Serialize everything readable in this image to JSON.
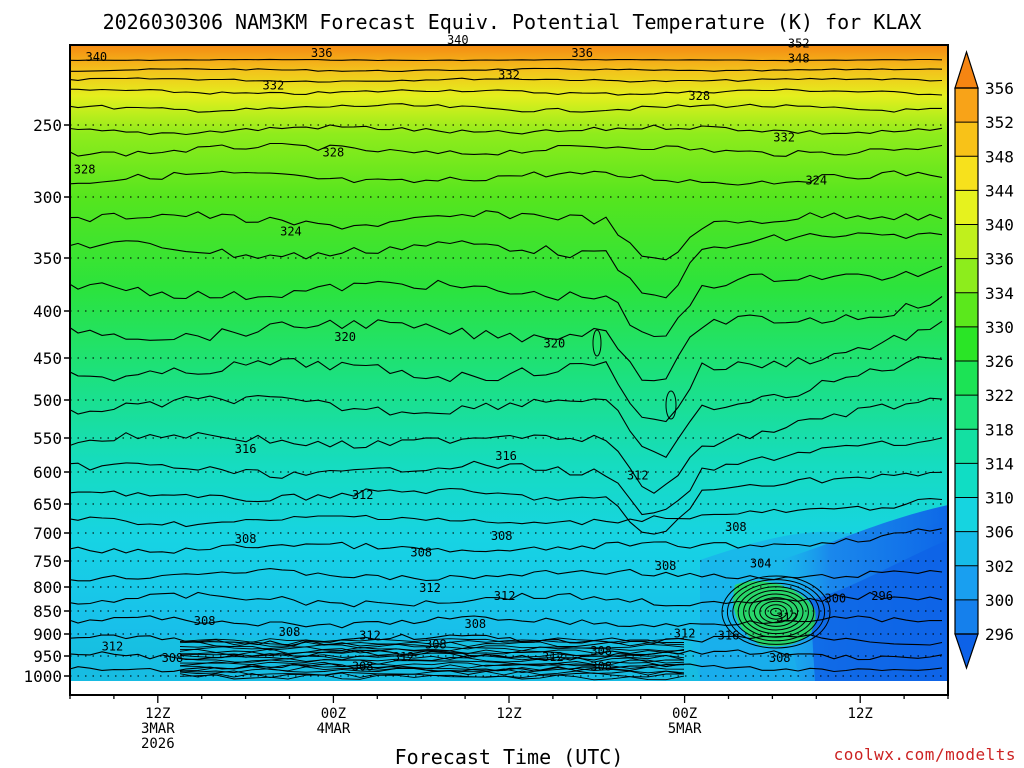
{
  "chart_data": {
    "type": "contour",
    "title": "2026030306 NAM3KM Forecast Equiv. Potential Temperature (K) for KLAX",
    "xlabel": "Forecast Time (UTC)",
    "ylabel": "",
    "x_ticks": [
      {
        "hour": 6,
        "lines": [
          "12Z",
          "3MAR",
          "2026"
        ]
      },
      {
        "hour": 18,
        "lines": [
          "00Z",
          "4MAR"
        ]
      },
      {
        "hour": 30,
        "lines": [
          "12Z"
        ]
      },
      {
        "hour": 42,
        "lines": [
          "00Z",
          "5MAR"
        ]
      },
      {
        "hour": 54,
        "lines": [
          "12Z"
        ]
      }
    ],
    "xlim_hours": [
      0,
      60
    ],
    "y_ticks_hpa": [
      250,
      300,
      350,
      400,
      450,
      500,
      550,
      600,
      650,
      700,
      750,
      800,
      850,
      900,
      950,
      1000
    ],
    "ylim_hpa": [
      1014,
      200
    ],
    "colorbar": {
      "levels": [
        296,
        300,
        302,
        306,
        310,
        314,
        318,
        322,
        326,
        330,
        334,
        336,
        340,
        344,
        348,
        352,
        356
      ],
      "colors": [
        "#0d62e8",
        "#1580ec",
        "#199ff0",
        "#16bce8",
        "#16d4e0",
        "#10ddc4",
        "#13e0a2",
        "#1ce37c",
        "#1ce355",
        "#2ae526",
        "#5be81c",
        "#8ded1c",
        "#c0f01c",
        "#e6f21e",
        "#f7e11c",
        "#f8c218",
        "#f8a318",
        "#f58512"
      ],
      "extend": "both"
    },
    "contour_interval_K": 2,
    "series": [
      {
        "name": "340",
        "label_hour": 1.8,
        "label_hpa": 212
      },
      {
        "name": "336",
        "label_hour": 17.2,
        "label_hpa": 210
      },
      {
        "name": "340",
        "label_hour": 26.5,
        "label_hpa": 203
      },
      {
        "name": "336",
        "label_hour": 35.0,
        "label_hpa": 210
      },
      {
        "name": "352",
        "label_hour": 49.8,
        "label_hpa": 205
      },
      {
        "name": "348",
        "label_hour": 49.8,
        "label_hpa": 213
      },
      {
        "name": "332",
        "label_hour": 13.9,
        "label_hpa": 228
      },
      {
        "name": "332",
        "label_hour": 30.0,
        "label_hpa": 222
      },
      {
        "name": "328",
        "label_hour": 43.0,
        "label_hpa": 234
      },
      {
        "name": "332",
        "label_hour": 48.8,
        "label_hpa": 260
      },
      {
        "name": "328",
        "label_hour": 1.0,
        "label_hpa": 282
      },
      {
        "name": "328",
        "label_hour": 18.0,
        "label_hpa": 270
      },
      {
        "name": "324",
        "label_hour": 51.0,
        "label_hpa": 290
      },
      {
        "name": "324",
        "label_hour": 15.1,
        "label_hpa": 330
      },
      {
        "name": "320",
        "label_hour": 18.8,
        "label_hpa": 430
      },
      {
        "name": "320",
        "label_hour": 33.1,
        "label_hpa": 437
      },
      {
        "name": "316",
        "label_hour": 12.0,
        "label_hpa": 570
      },
      {
        "name": "316",
        "label_hour": 29.8,
        "label_hpa": 580
      },
      {
        "name": "312",
        "label_hour": 20.0,
        "label_hpa": 640
      },
      {
        "name": "312",
        "label_hour": 38.8,
        "label_hpa": 610
      },
      {
        "name": "308",
        "label_hour": 12.0,
        "label_hpa": 716
      },
      {
        "name": "308",
        "label_hour": 29.5,
        "label_hpa": 710
      },
      {
        "name": "308",
        "label_hour": 40.7,
        "label_hpa": 765
      },
      {
        "name": "308",
        "label_hour": 45.5,
        "label_hpa": 695
      },
      {
        "name": "304",
        "label_hour": 47.2,
        "label_hpa": 760
      },
      {
        "name": "308",
        "label_hour": 24.0,
        "label_hpa": 740
      },
      {
        "name": "312",
        "label_hour": 24.6,
        "label_hpa": 808
      },
      {
        "name": "312",
        "label_hour": 29.7,
        "label_hpa": 825
      },
      {
        "name": "300",
        "label_hour": 52.3,
        "label_hpa": 830
      },
      {
        "name": "296",
        "label_hour": 55.5,
        "label_hpa": 825
      },
      {
        "name": "312",
        "label_hour": 49.0,
        "label_hpa": 870
      },
      {
        "name": "308",
        "label_hour": 9.2,
        "label_hpa": 878
      },
      {
        "name": "308",
        "label_hour": 27.7,
        "label_hpa": 885
      },
      {
        "name": "308",
        "label_hour": 15.0,
        "label_hpa": 902
      },
      {
        "name": "312",
        "label_hour": 20.5,
        "label_hpa": 910
      },
      {
        "name": "312",
        "label_hour": 42.0,
        "label_hpa": 905
      },
      {
        "name": "316",
        "label_hour": 45.0,
        "label_hpa": 910
      },
      {
        "name": "312",
        "label_hour": 2.9,
        "label_hpa": 935
      },
      {
        "name": "308",
        "label_hour": 25.0,
        "label_hpa": 930
      },
      {
        "name": "308",
        "label_hour": 7.0,
        "label_hpa": 962
      },
      {
        "name": "312",
        "label_hour": 22.8,
        "label_hpa": 960
      },
      {
        "name": "312",
        "label_hour": 33.0,
        "label_hpa": 960
      },
      {
        "name": "308",
        "label_hour": 36.3,
        "label_hpa": 945
      },
      {
        "name": "308",
        "label_hour": 48.5,
        "label_hpa": 962
      },
      {
        "name": "308",
        "label_hour": 20.0,
        "label_hpa": 983
      },
      {
        "name": "308",
        "label_hour": 36.3,
        "label_hpa": 983
      }
    ]
  },
  "credit": "coolwx.com/modelts"
}
